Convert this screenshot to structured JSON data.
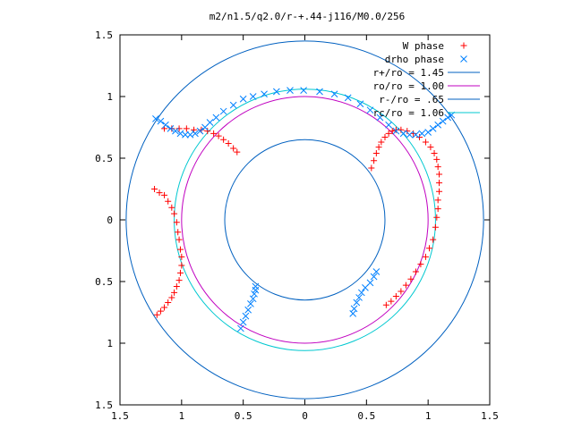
{
  "chart_data": {
    "type": "scatter",
    "title": "m2/n1.5/q2.0/r-+.44-j116/M0.0/256",
    "xlim": [
      -1.5,
      1.5
    ],
    "ylim": [
      -1.5,
      1.5
    ],
    "x_ticks": [
      -1.5,
      -1,
      -0.5,
      0,
      0.5,
      1,
      1.5
    ],
    "y_ticks": [
      1.5,
      1,
      0.5,
      0,
      -0.5,
      -1,
      -1.5
    ],
    "x_tick_labels": [
      "1.5",
      "1",
      "0.5",
      "0",
      "0.5",
      "1",
      "1.5"
    ],
    "y_tick_labels": [
      "1.5",
      "1",
      "0.5",
      "0",
      "0.5",
      "1",
      "1.5"
    ],
    "grid": false,
    "legend_position": "top-right",
    "legend": [
      {
        "label": "W phase",
        "kind": "marker",
        "marker": "plus",
        "color": "#ff0000"
      },
      {
        "label": "drho phase",
        "kind": "marker",
        "marker": "cross",
        "color": "#0080ff"
      },
      {
        "label": "r+/ro = 1.45",
        "kind": "line",
        "color": "#0060c0"
      },
      {
        "label": "ro/ro = 1.00",
        "kind": "line",
        "color": "#c000c0"
      },
      {
        "label": "r-/ro = .65",
        "kind": "line",
        "color": "#0060c0"
      },
      {
        "label": "rc/ro = 1.06",
        "kind": "line",
        "color": "#00c8d0"
      }
    ],
    "circles": [
      {
        "name": "r+/ro = 1.45",
        "r": 1.45,
        "color": "#0060c0"
      },
      {
        "name": "ro/ro = 1.00",
        "r": 1.0,
        "color": "#c000c0"
      },
      {
        "name": "r-/ro = .65",
        "r": 0.65,
        "color": "#0060c0"
      },
      {
        "name": "rc/ro = 1.06",
        "r": 1.06,
        "color": "#00c8d0"
      }
    ],
    "series": [
      {
        "name": "W phase",
        "marker": "plus",
        "color": "#ff0000",
        "x": [
          -1.2,
          -1.17,
          -1.14,
          -1.11,
          -1.08,
          -1.06,
          -1.04,
          -1.02,
          -1.01,
          -1.0,
          -1.0,
          -1.01,
          -1.02,
          -1.03,
          -1.04,
          -1.06,
          -1.08,
          -1.11,
          -1.14,
          -1.18,
          -1.22,
          -0.55,
          -0.58,
          -0.62,
          -0.66,
          -0.7,
          -0.74,
          -0.79,
          -0.84,
          -0.9,
          -0.96,
          -1.02,
          -1.08,
          -1.14,
          0.54,
          0.56,
          0.58,
          0.6,
          0.62,
          0.65,
          0.68,
          0.71,
          0.74,
          0.78,
          0.83,
          0.88,
          0.93,
          0.98,
          1.02,
          1.05,
          1.07,
          1.08,
          1.09,
          1.09,
          1.09,
          1.08,
          1.08,
          1.07,
          1.06,
          1.04,
          1.01,
          0.98,
          0.94,
          0.9,
          0.86,
          0.82,
          0.78,
          0.74,
          0.7,
          0.66
        ],
        "y": [
          -0.77,
          -0.74,
          -0.71,
          -0.67,
          -0.63,
          -0.59,
          -0.54,
          -0.49,
          -0.43,
          -0.37,
          -0.3,
          -0.24,
          -0.16,
          -0.1,
          -0.02,
          0.05,
          0.1,
          0.15,
          0.2,
          0.22,
          0.25,
          0.55,
          0.58,
          0.62,
          0.65,
          0.68,
          0.7,
          0.72,
          0.73,
          0.73,
          0.74,
          0.74,
          0.74,
          0.74,
          0.42,
          0.48,
          0.54,
          0.59,
          0.63,
          0.67,
          0.7,
          0.72,
          0.73,
          0.73,
          0.72,
          0.7,
          0.67,
          0.63,
          0.59,
          0.54,
          0.49,
          0.43,
          0.37,
          0.3,
          0.23,
          0.16,
          0.09,
          0.02,
          -0.06,
          -0.16,
          -0.23,
          -0.3,
          -0.36,
          -0.42,
          -0.48,
          -0.53,
          -0.58,
          -0.62,
          -0.66,
          -0.69
        ]
      },
      {
        "name": "drho phase",
        "marker": "cross",
        "color": "#0080ff",
        "x": [
          -1.21,
          -1.17,
          -1.13,
          -1.09,
          -1.05,
          -1.01,
          -0.97,
          -0.93,
          -0.89,
          -0.85,
          -0.81,
          -0.77,
          -0.72,
          -0.66,
          -0.58,
          -0.5,
          -0.42,
          -0.33,
          -0.23,
          -0.12,
          -0.01,
          0.12,
          0.24,
          0.35,
          0.45,
          0.53,
          0.61,
          0.68,
          0.74,
          0.8,
          0.85,
          0.9,
          0.95,
          1.0,
          1.04,
          1.08,
          1.12,
          1.16,
          1.19,
          -0.52,
          -0.5,
          -0.48,
          -0.46,
          -0.44,
          -0.42,
          -0.41,
          -0.4,
          -0.4,
          0.58,
          0.56,
          0.53,
          0.49,
          0.46,
          0.44,
          0.42,
          0.4,
          0.39
        ],
        "y": [
          0.82,
          0.8,
          0.77,
          0.74,
          0.72,
          0.7,
          0.69,
          0.69,
          0.7,
          0.72,
          0.75,
          0.79,
          0.83,
          0.88,
          0.93,
          0.98,
          1.0,
          1.02,
          1.04,
          1.05,
          1.05,
          1.04,
          1.02,
          0.99,
          0.94,
          0.89,
          0.83,
          0.77,
          0.72,
          0.7,
          0.69,
          0.69,
          0.7,
          0.71,
          0.74,
          0.77,
          0.8,
          0.83,
          0.85,
          -0.88,
          -0.83,
          -0.78,
          -0.73,
          -0.68,
          -0.64,
          -0.6,
          -0.57,
          -0.54,
          -0.42,
          -0.46,
          -0.51,
          -0.55,
          -0.59,
          -0.63,
          -0.67,
          -0.72,
          -0.76
        ]
      }
    ]
  }
}
